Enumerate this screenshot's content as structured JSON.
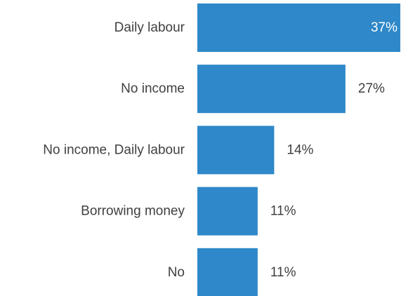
{
  "chart_data": {
    "type": "bar",
    "orientation": "horizontal",
    "categories": [
      "Daily labour",
      "No income",
      "No income, Daily labour",
      "Borrowing money",
      "No"
    ],
    "values": [
      37,
      27,
      14,
      11,
      11
    ],
    "value_labels": [
      "37%",
      "27%",
      "14%",
      "11%",
      "11%"
    ],
    "unit": "%",
    "title": "",
    "xlabel": "",
    "ylabel": "",
    "xlim": [
      0,
      37
    ],
    "grid": false,
    "legend": "none",
    "colors": {
      "bar": "#2e88c9",
      "label_outside": "#404040",
      "label_inside": "#ffffff",
      "category_text": "#404040"
    }
  }
}
